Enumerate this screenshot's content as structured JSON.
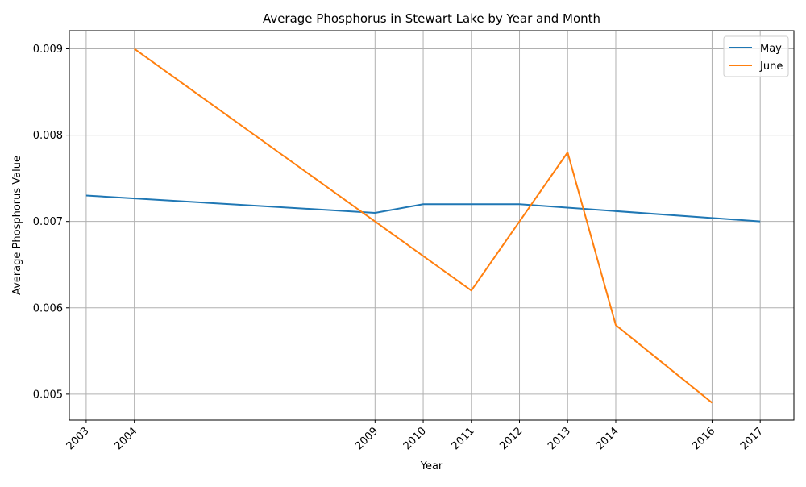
{
  "chart_data": {
    "type": "line",
    "title": "Average Phosphorus in Stewart Lake by Year and Month",
    "xlabel": "Year",
    "ylabel": "Average Phosphorus Value",
    "xlim": [
      2002.65,
      2017.7
    ],
    "ylim": [
      0.0047,
      0.00921
    ],
    "grid": true,
    "legend_position": "top-right",
    "x_ticks": [
      2003,
      2004,
      2009,
      2010,
      2011,
      2012,
      2013,
      2014,
      2016,
      2017
    ],
    "y_ticks": [
      0.005,
      0.006,
      0.007,
      0.008,
      0.009
    ],
    "y_tick_labels": [
      "0.005",
      "0.006",
      "0.007",
      "0.008",
      "0.009"
    ],
    "series": [
      {
        "name": "May",
        "color": "#1f77b4",
        "x": [
          2003,
          2009,
          2010,
          2011,
          2012,
          2017
        ],
        "y": [
          0.0073,
          0.0071,
          0.0072,
          0.0072,
          0.0072,
          0.007
        ]
      },
      {
        "name": "June",
        "color": "#ff7f0e",
        "x": [
          2004,
          2009,
          2011,
          2013,
          2014,
          2016
        ],
        "y": [
          0.009,
          0.007,
          0.0062,
          0.0078,
          0.0058,
          0.0049
        ]
      }
    ]
  }
}
